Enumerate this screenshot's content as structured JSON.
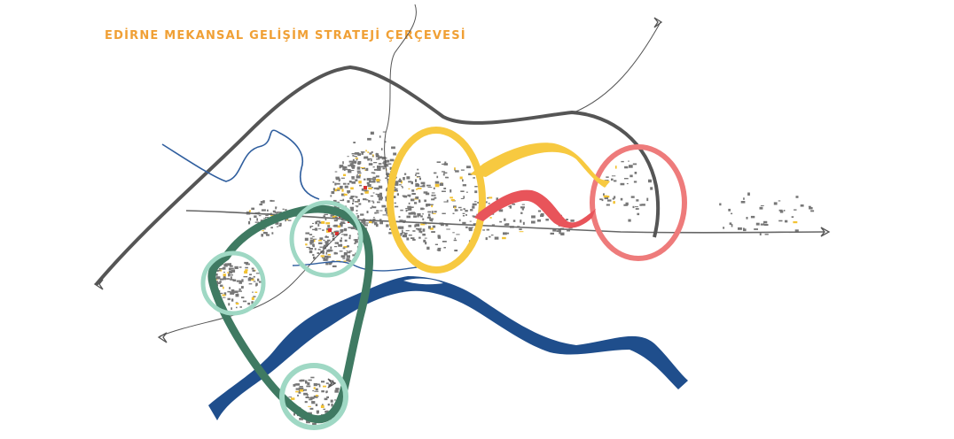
{
  "title": "EDİRNE MEKANSAL GELİŞİM STRATEJİ ÇERÇEVESİ",
  "colors": {
    "title": "#f0a035",
    "ring_road": "#555555",
    "river_blue": "#1f4e8c",
    "stream_blue": "#2f5e9e",
    "green_loop": "#3f7a62",
    "mint_ring": "#9fd8c4",
    "yellow": "#f7c940",
    "red_ring": "#ee7b7b",
    "red_arrow": "#e8545a",
    "buildings": "#777777",
    "highlight_yellow": "#f2c233",
    "highlight_red": "#d93030"
  },
  "icons": {
    "road_end_arrows": "chevron-arrow-icon"
  }
}
